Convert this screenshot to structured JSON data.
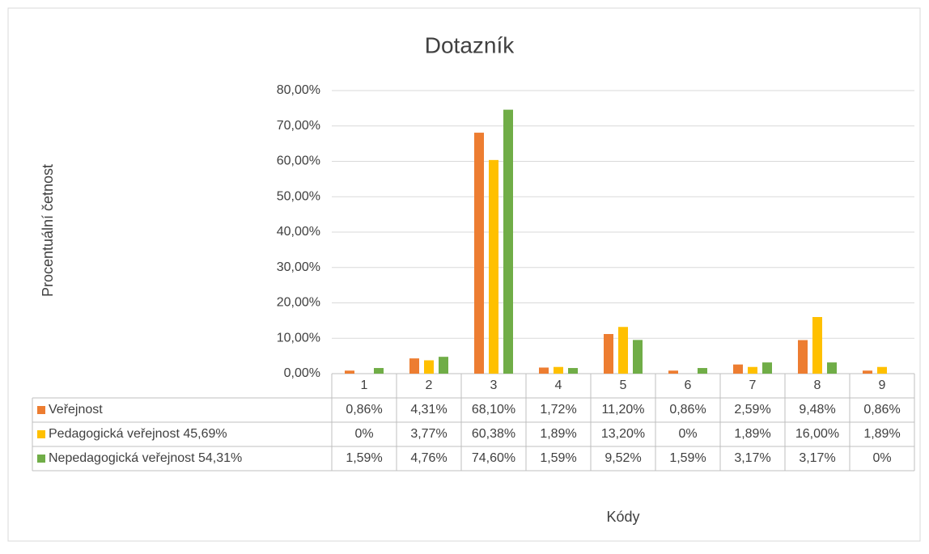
{
  "chart_data": {
    "type": "bar",
    "title": "Dotazník",
    "y_label": "Procentuální četnost",
    "x_label": "Kódy",
    "categories": [
      "1",
      "2",
      "3",
      "4",
      "5",
      "6",
      "7",
      "8",
      "9"
    ],
    "ylim": [
      0,
      80
    ],
    "yticks": [
      {
        "value": 0,
        "label": "0,00%"
      },
      {
        "value": 10,
        "label": "10,00%"
      },
      {
        "value": 20,
        "label": "20,00%"
      },
      {
        "value": 30,
        "label": "30,00%"
      },
      {
        "value": 40,
        "label": "40,00%"
      },
      {
        "value": 50,
        "label": "50,00%"
      },
      {
        "value": 60,
        "label": "60,00%"
      },
      {
        "value": 70,
        "label": "70,00%"
      },
      {
        "value": 80,
        "label": "80,00%"
      }
    ],
    "grid": true,
    "series": [
      {
        "name": "Veřejnost",
        "color": "#ed7d31",
        "values": [
          0.86,
          4.31,
          68.1,
          1.72,
          11.2,
          0.86,
          2.59,
          9.48,
          0.86
        ],
        "value_labels": [
          "0,86%",
          "4,31%",
          "68,10%",
          "1,72%",
          "11,20%",
          "0,86%",
          "2,59%",
          "9,48%",
          "0,86%"
        ]
      },
      {
        "name": "Pedagogická veřejnost 45,69%",
        "color": "#ffc000",
        "values": [
          0,
          3.77,
          60.38,
          1.89,
          13.2,
          0,
          1.89,
          16.0,
          1.89
        ],
        "value_labels": [
          "0%",
          "3,77%",
          "60,38%",
          "1,89%",
          "13,20%",
          "0%",
          "1,89%",
          "16,00%",
          "1,89%"
        ]
      },
      {
        "name": "Nepedagogická veřejnost 54,31%",
        "color": "#70ad47",
        "values": [
          1.59,
          4.76,
          74.6,
          1.59,
          9.52,
          1.59,
          3.17,
          3.17,
          0
        ],
        "value_labels": [
          "1,59%",
          "4,76%",
          "74,60%",
          "1,59%",
          "9,52%",
          "1,59%",
          "3,17%",
          "3,17%",
          "0%"
        ]
      }
    ]
  }
}
